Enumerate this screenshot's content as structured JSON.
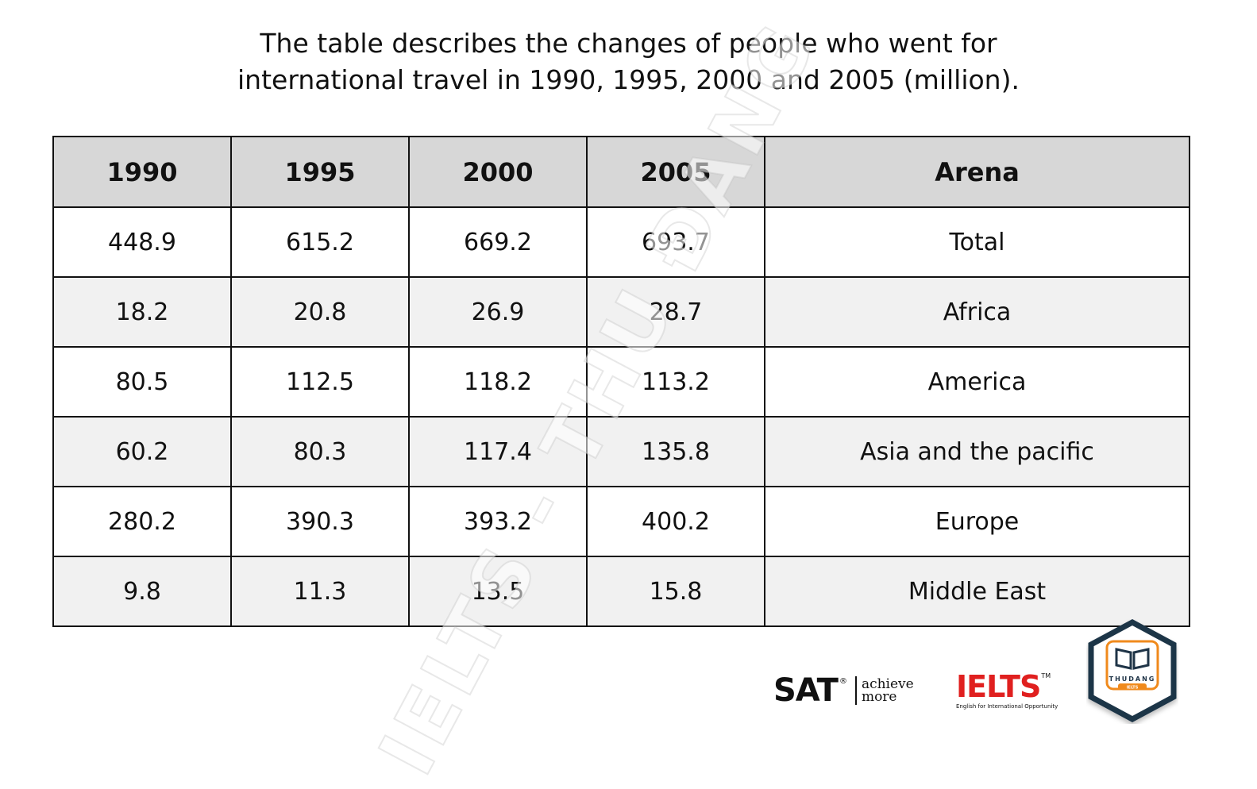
{
  "chart_data": {
    "type": "table",
    "title": "The table describes the changes of people who went for international travel in 1990, 1995, 2000 and 2005 (million).",
    "title_lines": [
      "The table describes the changes of people who went for",
      "international travel in 1990, 1995, 2000 and 2005 (million)."
    ],
    "columns": [
      "1990",
      "1995",
      "2000",
      "2005",
      "Arena"
    ],
    "rows": [
      {
        "1990": "448.9",
        "1995": "615.2",
        "2000": "669.2",
        "2005": "693.7",
        "Arena": "Total"
      },
      {
        "1990": "18.2",
        "1995": "20.8",
        "2000": "26.9",
        "2005": "28.7",
        "Arena": "Africa"
      },
      {
        "1990": "80.5",
        "1995": "112.5",
        "2000": "118.2",
        "2005": "113.2",
        "Arena": "America"
      },
      {
        "1990": "60.2",
        "1995": "80.3",
        "2000": "117.4",
        "2005": "135.8",
        "Arena": "Asia and the pacific"
      },
      {
        "1990": "280.2",
        "1995": "390.3",
        "2000": "393.2",
        "2005": "400.2",
        "Arena": "Europe"
      },
      {
        "1990": "9.8",
        "1995": "11.3",
        "2000": "13.5",
        "2005": "15.8",
        "Arena": "Middle East"
      }
    ]
  },
  "watermark": {
    "text": "IELTS - THU ĐANG"
  },
  "logos": {
    "sat": {
      "word": "SAT",
      "mark": "®",
      "tagline_1": "achieve",
      "tagline_2": "more"
    },
    "ielts": {
      "word": "IELTS",
      "mark": "TM",
      "subtitle": "English for International Opportunity"
    },
    "badge": {
      "icon": "open-book-icon",
      "name": "THUDANG",
      "sub": "IELTS"
    }
  },
  "colors": {
    "header_bg": "#d7d7d7",
    "alt_row_bg": "#f1f1f1",
    "border": "#111111",
    "ielts_red": "#e0201f",
    "badge_orange": "#f08a1c",
    "badge_navy": "#1f3447"
  }
}
